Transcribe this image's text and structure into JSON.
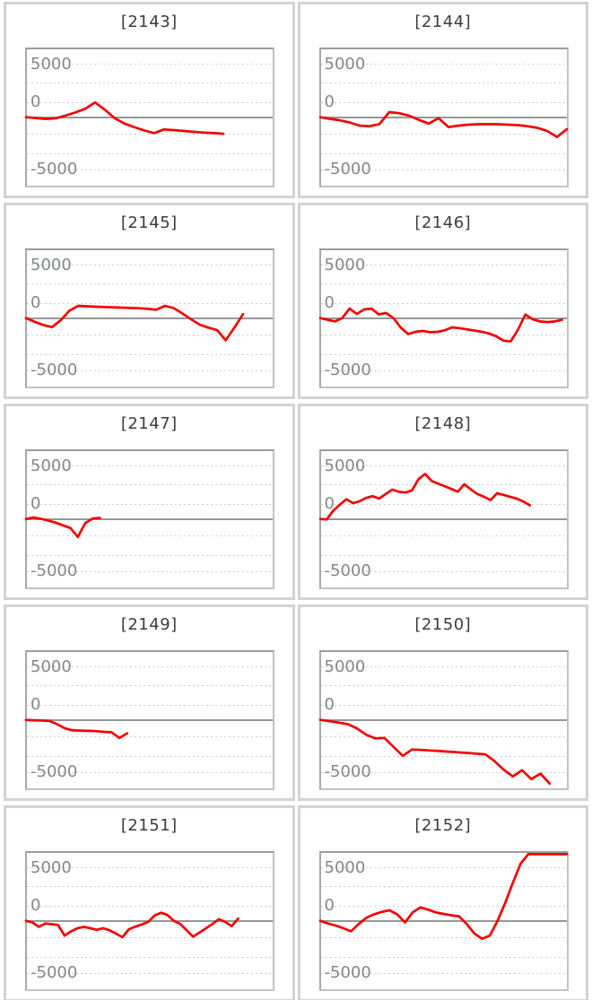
{
  "page": {
    "description": "Grid of 10 machine slump graphs",
    "background": "#ffffff"
  },
  "style": {
    "line_color": "#f40000",
    "grid_color": "#cdcdcd",
    "zero_line_color": "#979797",
    "tick_label_color": "#848789",
    "title_color": "#3d3d3d",
    "panel_border_color": "#d3d3d3",
    "plot_border_color": "#b3b3b3"
  },
  "axis": {
    "tick_labels": [
      "5000",
      "0",
      "-5000"
    ],
    "ymin": -6500,
    "ymax": 6500,
    "zero_baseline": true,
    "grid": "dotted",
    "legend": "none"
  },
  "chart_data": [
    {
      "type": "line",
      "title": "[2143]",
      "ylim": [
        -6500,
        6500
      ],
      "yticks": [
        5000,
        0,
        -5000
      ],
      "x_extent": 0.8,
      "values": [
        0,
        -80,
        -170,
        -100,
        150,
        450,
        800,
        1400,
        700,
        -100,
        -600,
        -950,
        -1250,
        -1500,
        -1150,
        -1220,
        -1300,
        -1380,
        -1450,
        -1500,
        -1560
      ]
    },
    {
      "type": "line",
      "title": "[2144]",
      "ylim": [
        -6500,
        6500
      ],
      "yticks": [
        5000,
        0,
        -5000
      ],
      "x_extent": 1.0,
      "values": [
        0,
        -150,
        -300,
        -500,
        -800,
        -850,
        -650,
        480,
        380,
        150,
        -250,
        -600,
        -85,
        -930,
        -800,
        -700,
        -660,
        -650,
        -660,
        -700,
        -750,
        -850,
        -1000,
        -1300,
        -1865,
        -1130
      ]
    },
    {
      "type": "line",
      "title": "[2145]",
      "ylim": [
        -6500,
        6500
      ],
      "yticks": [
        5000,
        0,
        -5000
      ],
      "x_extent": 0.88,
      "values": [
        0,
        -350,
        -650,
        -850,
        -200,
        700,
        1160,
        1120,
        1080,
        1050,
        1020,
        990,
        960,
        930,
        880,
        790,
        1160,
        950,
        450,
        -100,
        -620,
        -900,
        -1130,
        -2090,
        -900,
        370
      ]
    },
    {
      "type": "line",
      "title": "[2146]",
      "ylim": [
        -6500,
        6500
      ],
      "yticks": [
        5000,
        0,
        -5000
      ],
      "x_extent": 0.98,
      "values": [
        0,
        -150,
        -310,
        0,
        900,
        400,
        820,
        900,
        350,
        480,
        0,
        -900,
        -1500,
        -1300,
        -1215,
        -1330,
        -1300,
        -1150,
        -875,
        -950,
        -1060,
        -1170,
        -1280,
        -1440,
        -1700,
        -2120,
        -2200,
        -1100,
        340,
        -100,
        -310,
        -370,
        -310,
        -170
      ]
    },
    {
      "type": "line",
      "title": "[2147]",
      "ylim": [
        -6500,
        6500
      ],
      "yticks": [
        5000,
        0,
        -5000
      ],
      "x_extent": 0.3,
      "values": [
        0,
        150,
        20,
        -150,
        -340,
        -600,
        -850,
        -1700,
        -400,
        50,
        100
      ]
    },
    {
      "type": "line",
      "title": "[2148]",
      "ylim": [
        -6500,
        6500
      ],
      "yticks": [
        5000,
        0,
        -5000
      ],
      "x_extent": 0.85,
      "values": [
        0,
        -30,
        800,
        1360,
        1870,
        1500,
        1680,
        1990,
        2160,
        1930,
        2360,
        2780,
        2580,
        2500,
        2700,
        3770,
        4260,
        3600,
        3350,
        3100,
        2850,
        2580,
        3290,
        2800,
        2360,
        2100,
        1790,
        2440,
        2280,
        2100,
        1930,
        1650,
        1300
      ]
    },
    {
      "type": "line",
      "title": "[2149]",
      "ylim": [
        -6500,
        6500
      ],
      "yticks": [
        5000,
        0,
        -5000
      ],
      "x_extent": 0.41,
      "values": [
        0,
        -30,
        -60,
        -100,
        -400,
        -800,
        -990,
        -1010,
        -1030,
        -1060,
        -1130,
        -1170,
        -1700,
        -1270
      ]
    },
    {
      "type": "line",
      "title": "[2150]",
      "ylim": [
        -6500,
        6500
      ],
      "yticks": [
        5000,
        0,
        -5000
      ],
      "x_extent": 0.93,
      "values": [
        0,
        -120,
        -250,
        -400,
        -800,
        -1400,
        -1750,
        -1700,
        -2550,
        -3400,
        -2800,
        -2840,
        -2890,
        -2940,
        -3000,
        -3060,
        -3120,
        -3190,
        -3250,
        -3900,
        -4700,
        -5340,
        -4750,
        -5590,
        -5080,
        -6020
      ]
    },
    {
      "type": "line",
      "title": "[2151]",
      "ylim": [
        -6500,
        6500
      ],
      "yticks": [
        5000,
        0,
        -5000
      ],
      "x_extent": 0.86,
      "values": [
        0,
        -150,
        -570,
        -250,
        -320,
        -400,
        -1400,
        -1000,
        -700,
        -570,
        -700,
        -850,
        -700,
        -900,
        -1200,
        -1550,
        -800,
        -550,
        -350,
        -100,
        500,
        760,
        550,
        0,
        -300,
        -900,
        -1500,
        -1100,
        -700,
        -300,
        150,
        -100,
        -500,
        200
      ]
    },
    {
      "type": "line",
      "title": "[2152]",
      "ylim": [
        -6500,
        6500
      ],
      "yticks": [
        5000,
        0,
        -5000
      ],
      "x_extent": 1.0,
      "values": [
        0,
        -250,
        -450,
        -700,
        -990,
        -300,
        300,
        620,
        850,
        990,
        600,
        -150,
        800,
        1270,
        1050,
        800,
        650,
        520,
        430,
        -300,
        -1200,
        -1700,
        -1400,
        0,
        1700,
        3600,
        5400,
        6500,
        6500,
        6500,
        6500,
        6500,
        6500
      ]
    }
  ]
}
